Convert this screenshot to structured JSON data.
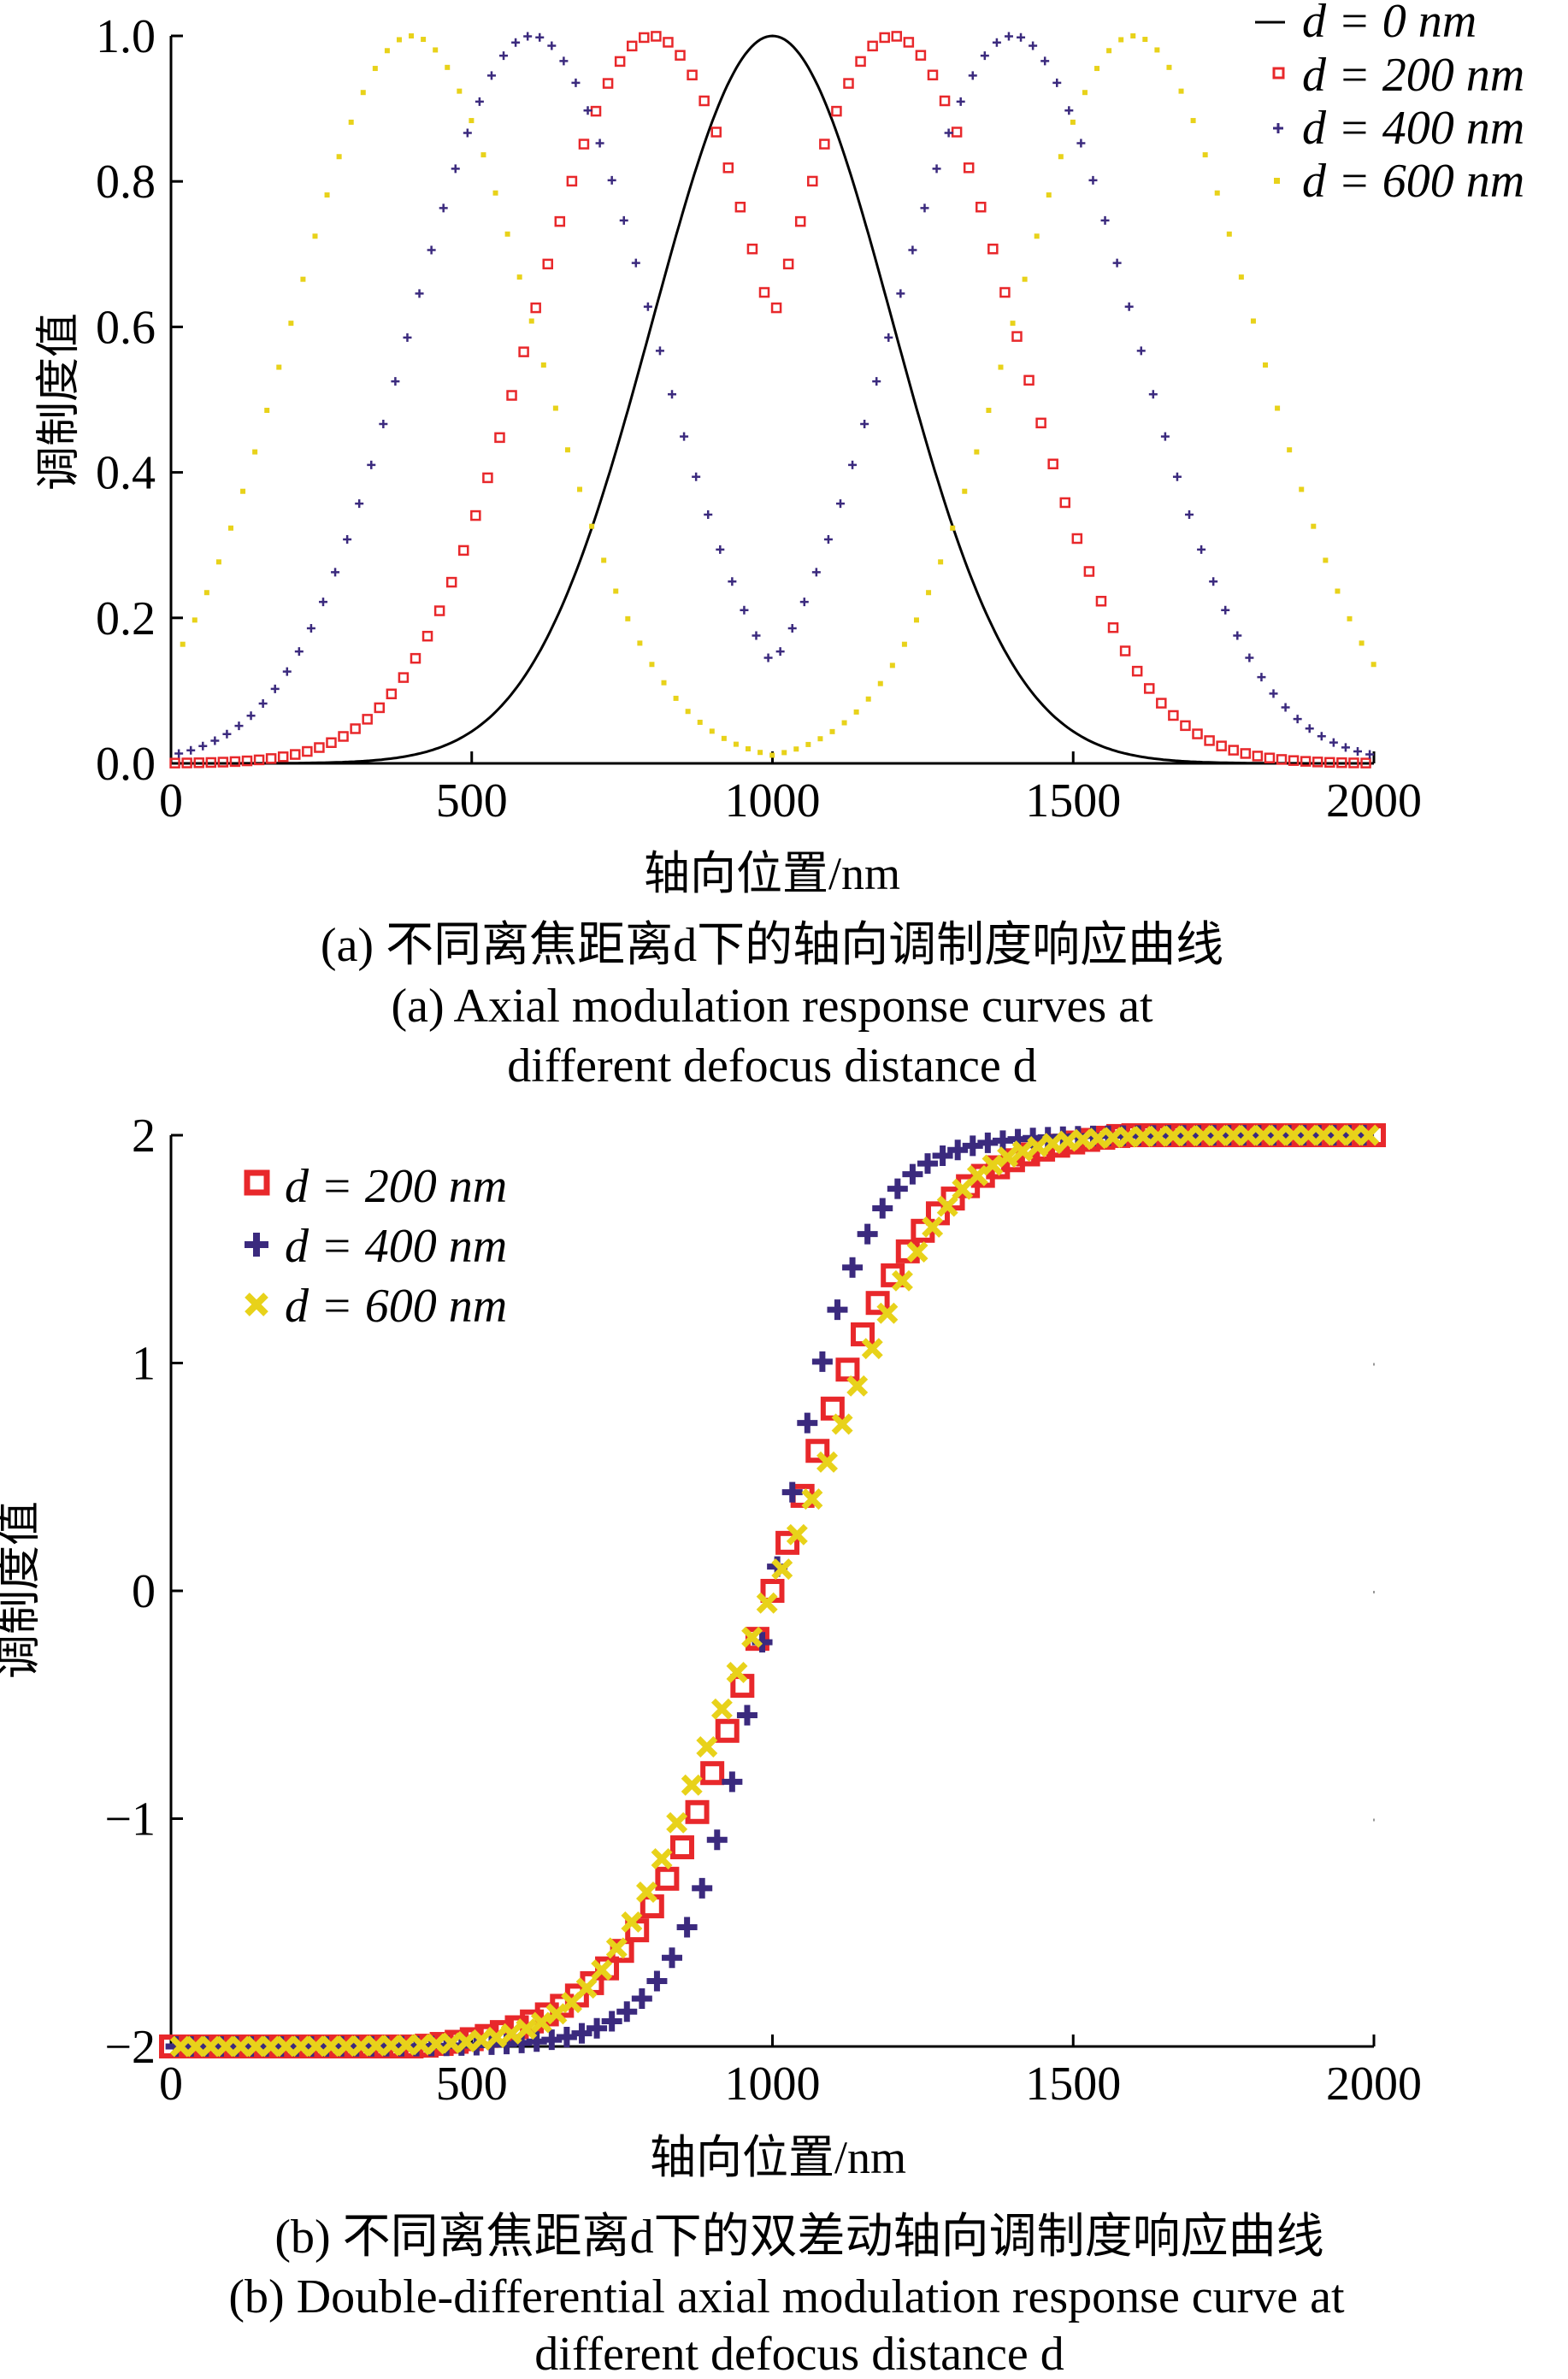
{
  "chart_data": [
    {
      "type": "line",
      "panel": "a",
      "xlabel": "轴向位置/nm",
      "ylabel": "调制度值",
      "xlim": [
        0,
        2000
      ],
      "ylim": [
        0,
        1.0
      ],
      "xticks": [
        "0",
        "500",
        "1000",
        "1500",
        "2000"
      ],
      "yticks": [
        "0.0",
        "0.2",
        "0.4",
        "0.6",
        "0.8",
        "1.0"
      ],
      "legend_position": "top-right",
      "caption_cn": "(a) 不同离焦距离d下的轴向调制度响应曲线",
      "caption_en_line1": "(a) Axial modulation response curves at",
      "caption_en_line2": "different defocus distance d",
      "series": [
        {
          "name": "d = 0 nm",
          "style": "line",
          "color": "#000000",
          "peaks": [
            1000
          ],
          "sigma": 200,
          "x_step": 5
        },
        {
          "name": "d = 200 nm",
          "style": "square",
          "color": "#e8282b",
          "peaks": [
            800,
            1200
          ],
          "sigma": 200,
          "x_step": 20
        },
        {
          "name": "d = 400 nm",
          "style": "plus",
          "color": "#3b2a7e",
          "peaks": [
            600,
            1400
          ],
          "sigma": 200,
          "x_step": 20
        },
        {
          "name": "d = 600 nm",
          "style": "dot",
          "color": "#e8d21a",
          "peaks": [
            400,
            1600
          ],
          "sigma": 200,
          "x_step": 20
        }
      ]
    },
    {
      "type": "scatter",
      "panel": "b",
      "xlabel": "轴向位置/nm",
      "ylabel": "调制度值",
      "xlim": [
        0,
        2000
      ],
      "ylim": [
        -2,
        2
      ],
      "xticks": [
        "0",
        "500",
        "1000",
        "1500",
        "2000"
      ],
      "yticks": [
        "−2",
        "−1",
        "0",
        "1",
        "2"
      ],
      "legend_position": "top-left",
      "caption_cn": "(b) 不同离焦距离d下的双差动轴向调制度响应曲线",
      "caption_en_line1": "(b) Double-differential axial modulation response curve at",
      "caption_en_line2": "different defocus distance d",
      "series": [
        {
          "name": "d = 200 nm",
          "style": "square",
          "color": "#e8282b",
          "center": 1000,
          "scale": 240,
          "amplitude": 2.03,
          "x_step": 25
        },
        {
          "name": "d = 400 nm",
          "style": "plus",
          "color": "#3b2a7e",
          "center": 1000,
          "scale": 150,
          "amplitude": 2.0,
          "x_step": 25
        },
        {
          "name": "d = 600 nm",
          "style": "cross",
          "color": "#e8d21a",
          "center": 1000,
          "scale": 185,
          "amplitude": 2.0,
          "x_step": 25,
          "mid_dip": 0.45
        }
      ]
    }
  ]
}
